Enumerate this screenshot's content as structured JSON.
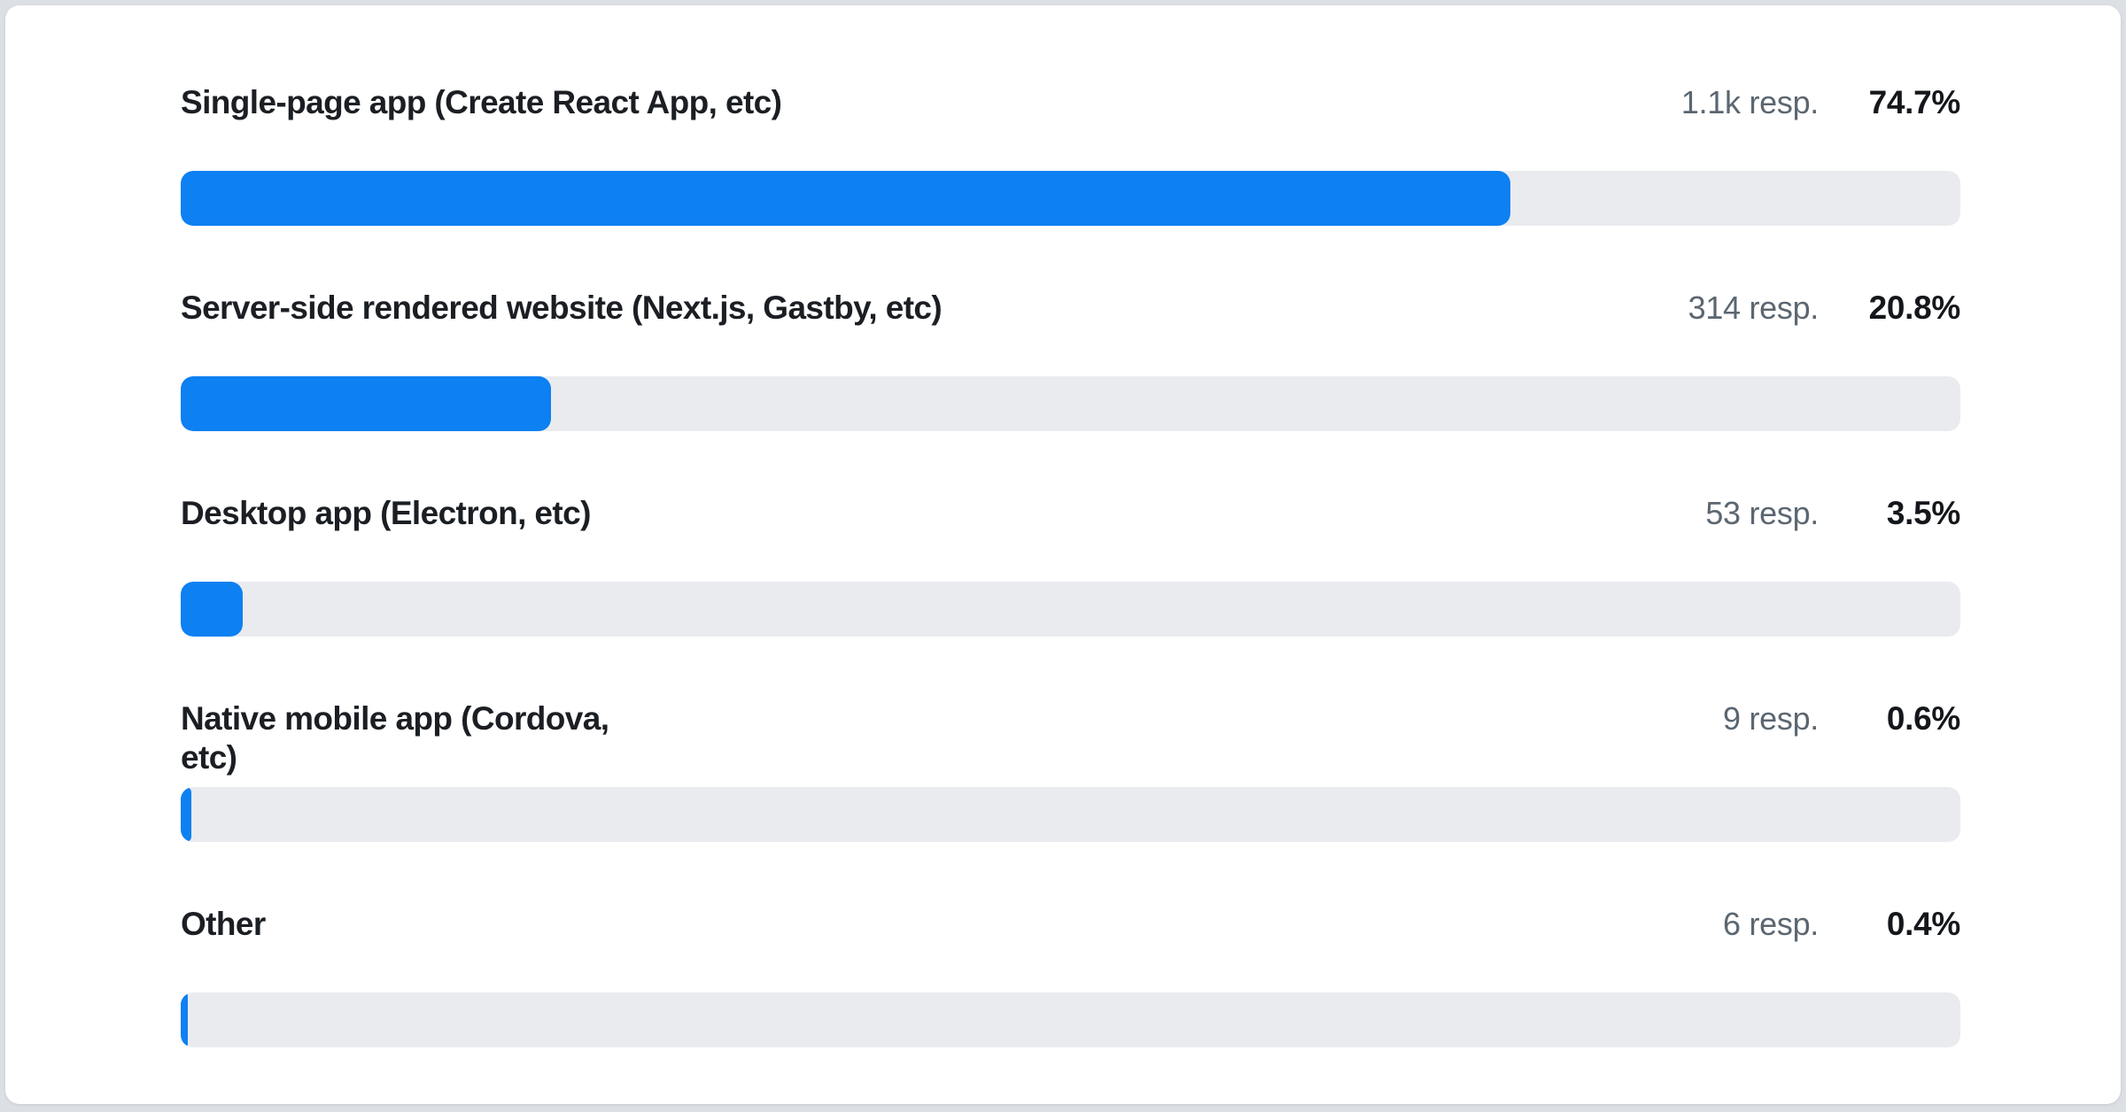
{
  "page": {
    "background_color": "#dcdfe3",
    "card_background_color": "#ffffff"
  },
  "colors": {
    "bar_fill": "#0d80f2",
    "bar_track": "#e9ebef",
    "text_primary": "#1b1f24",
    "text_secondary": "#5b6670",
    "text_strong": "#14171b"
  },
  "chart_data": {
    "type": "bar",
    "orientation": "horizontal",
    "title": "",
    "xlabel": "",
    "ylabel": "",
    "xlim": [
      0,
      100
    ],
    "grid": false,
    "legend": false,
    "categories": [
      "Single-page app (Create React App, etc)",
      "Server-side rendered website (Next.js, Gastby, etc)",
      "Desktop app (Electron, etc)",
      "Native mobile app (Cordova, etc)",
      "Other"
    ],
    "values": [
      74.7,
      20.8,
      3.5,
      0.6,
      0.4
    ],
    "response_counts": [
      1100,
      314,
      53,
      9,
      6
    ],
    "rows": [
      {
        "label_display": "Single-page app (Create React App, etc)",
        "responses_label": "1.1k resp.",
        "percent_label": "74.7%",
        "percent_value": 74.7
      },
      {
        "label_display": "Server-side rendered website (Next.js, Gastby, etc)",
        "responses_label": "314 resp.",
        "percent_label": "20.8%",
        "percent_value": 20.8
      },
      {
        "label_display": "Desktop app (Electron, etc)",
        "responses_label": "53 resp.",
        "percent_label": "3.5%",
        "percent_value": 3.5
      },
      {
        "label_display": "Native mobile app (Cordova,\netc)",
        "responses_label": "9 resp.",
        "percent_label": "0.6%",
        "percent_value": 0.6
      },
      {
        "label_display": "Other",
        "responses_label": "6 resp.",
        "percent_label": "0.4%",
        "percent_value": 0.4
      }
    ]
  }
}
